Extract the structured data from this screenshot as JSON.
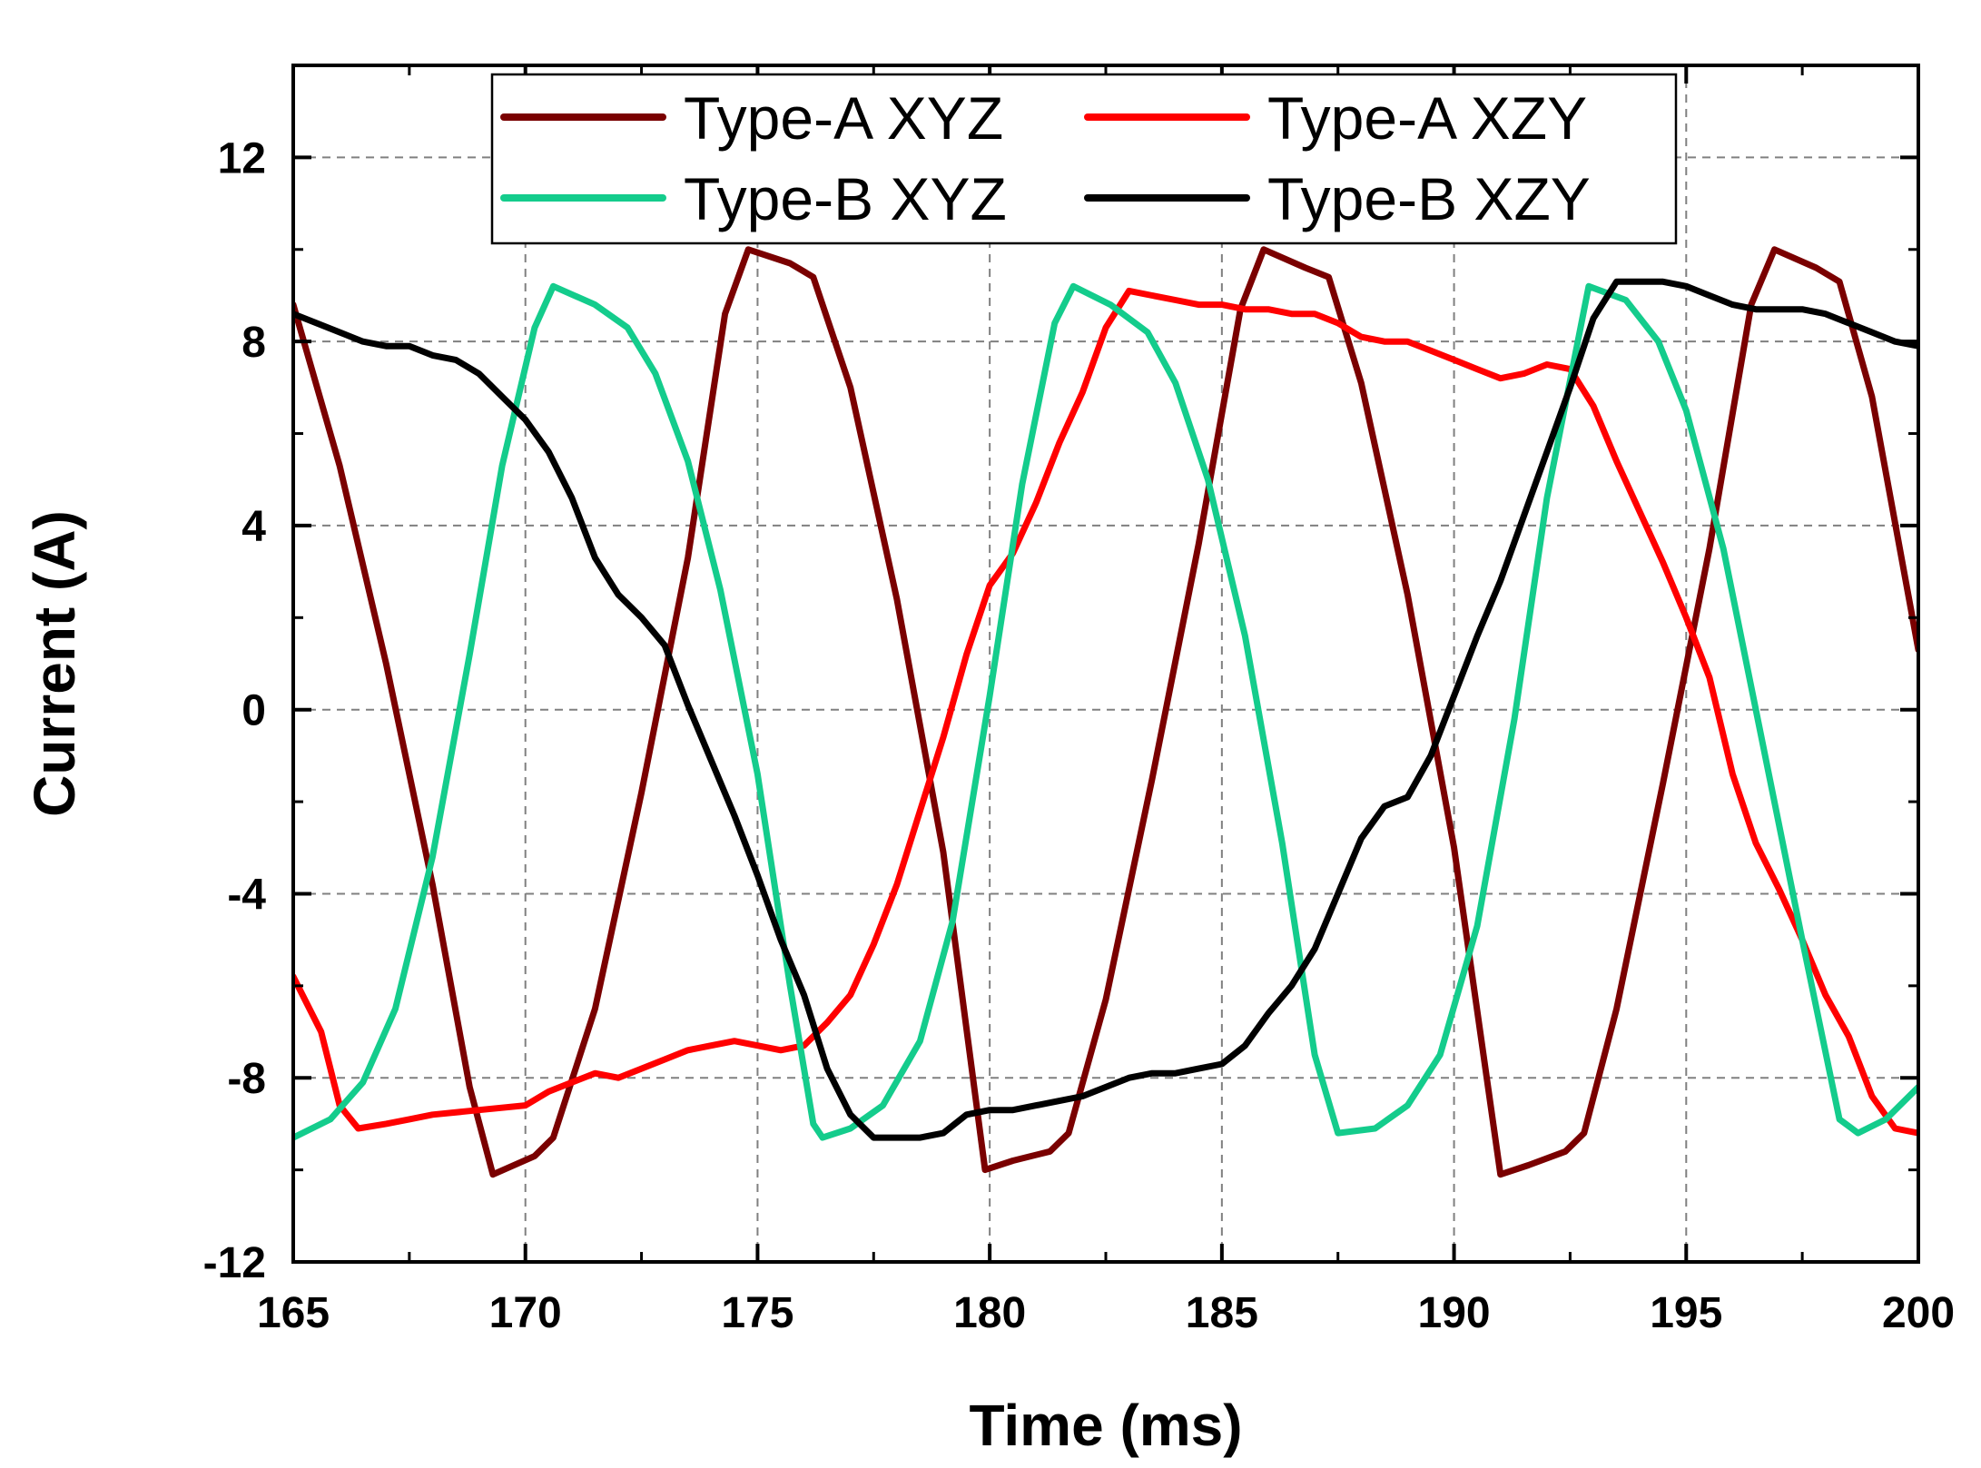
{
  "chart_data": {
    "type": "line",
    "title": "",
    "xlabel": "Time (ms)",
    "ylabel": "Current (A)",
    "xlim": [
      165,
      200
    ],
    "ylim": [
      -12,
      14
    ],
    "xticks": [
      165,
      170,
      175,
      180,
      185,
      190,
      195,
      200
    ],
    "yticks": [
      -12,
      -8,
      -4,
      0,
      4,
      8,
      12
    ],
    "grid": true,
    "legend_position": "top",
    "series": [
      {
        "name": "Type-A XYZ",
        "color": "#7a0000",
        "x": [
          165,
          166,
          167,
          168,
          168.8,
          169.3,
          170.2,
          170.6,
          171.5,
          172.5,
          173.5,
          174.3,
          174.8,
          175.7,
          176.2,
          177,
          178,
          179,
          179.9,
          180.5,
          181.3,
          181.7,
          182.5,
          183.5,
          184.5,
          185.4,
          185.9,
          186.8,
          187.3,
          188,
          189,
          190,
          191,
          191.6,
          192.4,
          192.8,
          193.5,
          194.5,
          195.5,
          196.4,
          196.9,
          197.8,
          198.3,
          199,
          200
        ],
        "values": [
          8.8,
          5.3,
          1.0,
          -3.8,
          -8.2,
          -10.1,
          -9.7,
          -9.3,
          -6.5,
          -1.8,
          3.3,
          8.6,
          10.0,
          9.7,
          9.4,
          7.0,
          2.4,
          -3.1,
          -10.0,
          -9.8,
          -9.6,
          -9.2,
          -6.3,
          -1.5,
          3.6,
          8.7,
          10.0,
          9.6,
          9.4,
          7.1,
          2.5,
          -3.0,
          -10.1,
          -9.9,
          -9.6,
          -9.2,
          -6.5,
          -1.6,
          3.5,
          8.8,
          10.0,
          9.6,
          9.3,
          6.8,
          1.3
        ]
      },
      {
        "name": "Type-A XZY",
        "color": "#ff0000",
        "x": [
          165,
          165.6,
          166,
          166.4,
          167,
          167.5,
          168,
          169,
          170,
          170.5,
          171,
          171.5,
          172,
          172.5,
          173,
          173.5,
          174,
          174.5,
          175,
          175.5,
          176,
          176.5,
          177,
          177.5,
          178,
          178.5,
          179,
          179.5,
          180,
          180.5,
          181,
          181.5,
          182,
          182.5,
          183,
          183.5,
          184,
          184.5,
          185,
          185.5,
          186,
          186.5,
          187,
          187.5,
          188,
          188.5,
          189,
          189.5,
          190,
          190.5,
          191,
          191.5,
          192,
          192.5,
          193,
          193.5,
          194,
          194.5,
          195,
          195.5,
          196,
          196.5,
          197,
          197.5,
          198,
          198.5,
          199,
          199.5,
          200
        ],
        "values": [
          -5.8,
          -7.0,
          -8.6,
          -9.1,
          -9.0,
          -8.9,
          -8.8,
          -8.7,
          -8.6,
          -8.3,
          -8.1,
          -7.9,
          -8.0,
          -7.8,
          -7.6,
          -7.4,
          -7.3,
          -7.2,
          -7.3,
          -7.4,
          -7.3,
          -6.8,
          -6.2,
          -5.1,
          -3.8,
          -2.2,
          -0.6,
          1.2,
          2.7,
          3.4,
          4.5,
          5.8,
          6.9,
          8.3,
          9.1,
          9.0,
          8.9,
          8.8,
          8.8,
          8.7,
          8.7,
          8.6,
          8.6,
          8.4,
          8.1,
          8.0,
          8.0,
          7.8,
          7.6,
          7.4,
          7.2,
          7.3,
          7.5,
          7.4,
          6.6,
          5.4,
          4.3,
          3.2,
          2.0,
          0.7,
          -1.4,
          -2.9,
          -3.9,
          -5.0,
          -6.2,
          -7.1,
          -8.4,
          -9.1,
          -9.2
        ]
      },
      {
        "name": "Type-B XYZ",
        "color": "#14cc8c",
        "x": [
          165,
          165.8,
          166.5,
          167.2,
          168,
          168.8,
          169.5,
          170.2,
          170.6,
          171.5,
          172.2,
          172.8,
          173.5,
          174.2,
          175,
          175.7,
          176.2,
          176.4,
          177,
          177.7,
          178.5,
          179.2,
          180,
          180.7,
          181.4,
          181.8,
          182.6,
          183.4,
          184,
          184.7,
          185.5,
          186.3,
          187,
          187.5,
          188.3,
          189,
          189.7,
          190.5,
          191.3,
          192,
          192.9,
          193.7,
          194.4,
          195,
          195.8,
          196.6,
          197.5,
          198.3,
          198.7,
          199.3,
          200
        ],
        "values": [
          -9.3,
          -8.9,
          -8.1,
          -6.5,
          -3.2,
          1.2,
          5.3,
          8.3,
          9.2,
          8.8,
          8.3,
          7.3,
          5.4,
          2.6,
          -1.4,
          -6.0,
          -9.0,
          -9.3,
          -9.1,
          -8.6,
          -7.2,
          -4.6,
          0.3,
          4.9,
          8.4,
          9.2,
          8.8,
          8.2,
          7.1,
          5.0,
          1.6,
          -2.9,
          -7.5,
          -9.2,
          -9.1,
          -8.6,
          -7.5,
          -4.7,
          -0.2,
          4.6,
          9.2,
          8.9,
          8.0,
          6.5,
          3.5,
          -0.5,
          -5.0,
          -8.9,
          -9.2,
          -8.9,
          -8.2
        ]
      },
      {
        "name": "Type-B XZY",
        "color": "#000000",
        "x": [
          165,
          165.5,
          166,
          166.5,
          167,
          167.5,
          168,
          168.5,
          169,
          169.5,
          170,
          170.5,
          171,
          171.5,
          172,
          172.5,
          173,
          173.5,
          174,
          174.5,
          175,
          175.5,
          176,
          176.5,
          177,
          177.5,
          178,
          178.5,
          179,
          179.5,
          180,
          180.5,
          181,
          181.5,
          182,
          182.5,
          183,
          183.5,
          184,
          184.5,
          185,
          185.5,
          186,
          186.5,
          187,
          187.5,
          188,
          188.5,
          189,
          189.5,
          190,
          190.5,
          191,
          191.5,
          192,
          192.5,
          193,
          193.5,
          194,
          194.5,
          195,
          195.5,
          196,
          196.5,
          197,
          197.5,
          198,
          198.5,
          199,
          199.5,
          200
        ],
        "values": [
          8.6,
          8.4,
          8.2,
          8.0,
          7.9,
          7.9,
          7.7,
          7.6,
          7.3,
          6.8,
          6.3,
          5.6,
          4.6,
          3.3,
          2.5,
          2.0,
          1.4,
          0.1,
          -1.1,
          -2.3,
          -3.6,
          -5.0,
          -6.2,
          -7.8,
          -8.8,
          -9.3,
          -9.3,
          -9.3,
          -9.2,
          -8.8,
          -8.7,
          -8.7,
          -8.6,
          -8.5,
          -8.4,
          -8.2,
          -8.0,
          -7.9,
          -7.9,
          -7.8,
          -7.7,
          -7.3,
          -6.6,
          -6.0,
          -5.2,
          -4.0,
          -2.8,
          -2.1,
          -1.9,
          -1.0,
          0.3,
          1.6,
          2.8,
          4.2,
          5.6,
          7.0,
          8.5,
          9.3,
          9.3,
          9.3,
          9.2,
          9.0,
          8.8,
          8.7,
          8.7,
          8.7,
          8.6,
          8.4,
          8.2,
          8.0,
          7.9
        ]
      }
    ]
  }
}
